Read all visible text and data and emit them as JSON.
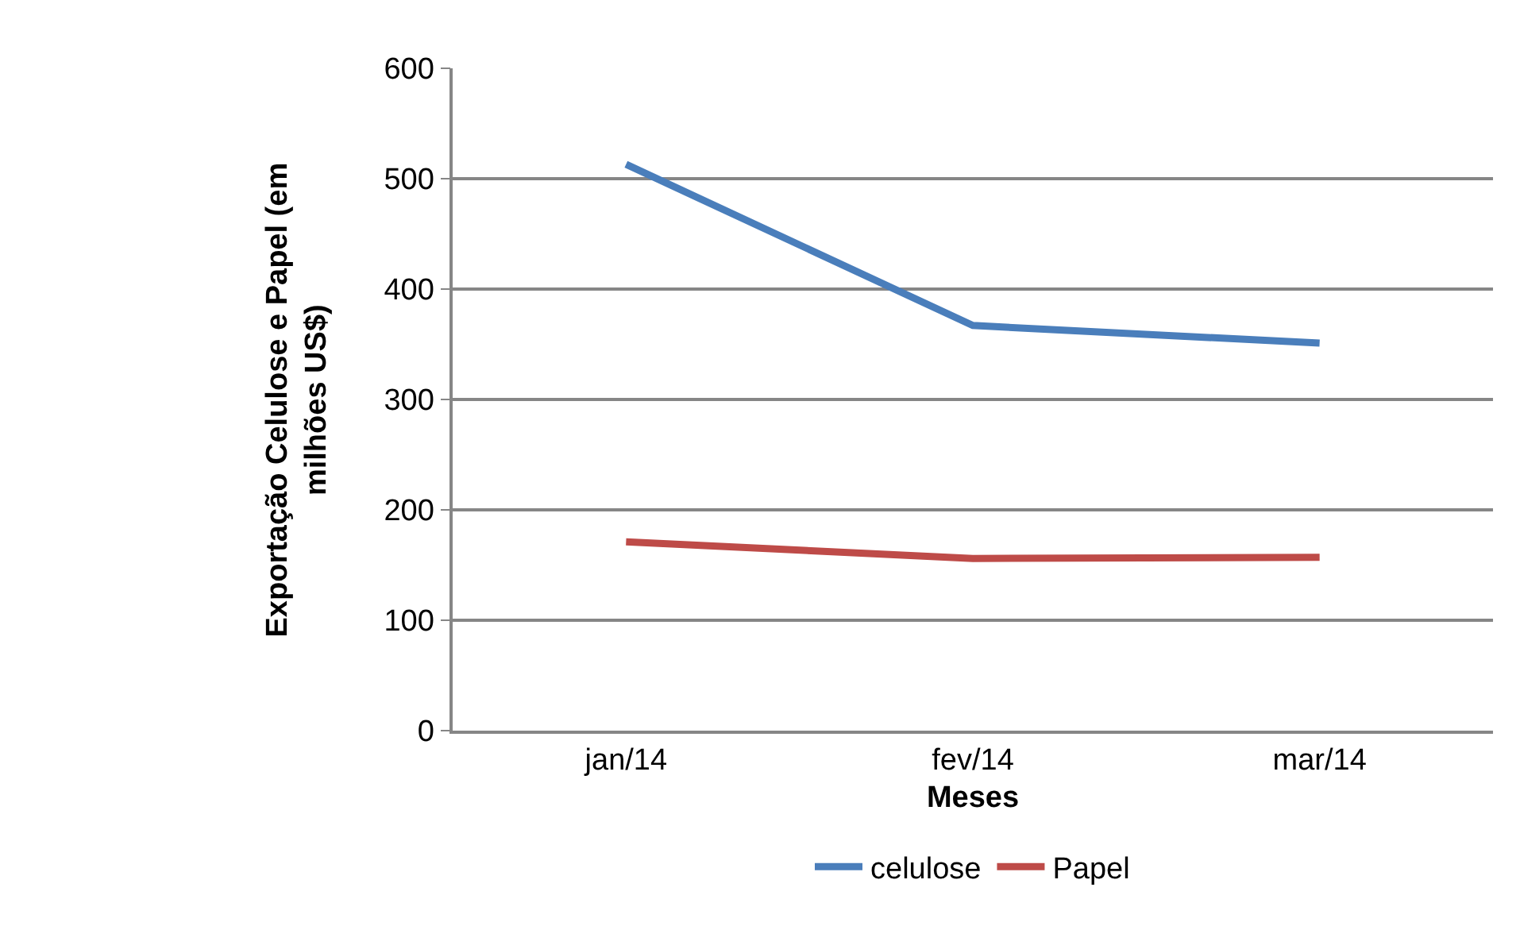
{
  "chart_data": {
    "type": "line",
    "xlabel": "Meses",
    "ylabel": "Exportação Celulose e Papel (em milhões US$)",
    "categories": [
      "jan/14",
      "fev/14",
      "mar/14"
    ],
    "series": [
      {
        "name": "celulose",
        "color": "#4a7ebb",
        "values": [
          513,
          367,
          351
        ]
      },
      {
        "name": "Papel",
        "color": "#be4b48",
        "values": [
          171,
          156,
          157
        ]
      }
    ],
    "ylim": [
      0,
      600
    ],
    "yticks": [
      0,
      100,
      200,
      300,
      400,
      500,
      600
    ],
    "grid": "y",
    "legend": "bottom",
    "marker": "none",
    "line_style": "solid"
  }
}
